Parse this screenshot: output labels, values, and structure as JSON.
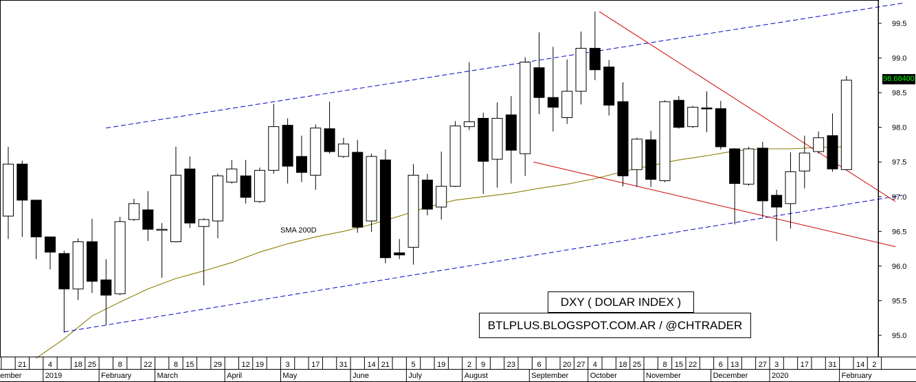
{
  "chart_data": {
    "type": "candlestick",
    "interval": "weekly",
    "ylim": [
      94.6,
      99.85
    ],
    "yticks": [
      95.0,
      95.5,
      96.0,
      96.5,
      97.0,
      97.5,
      98.0,
      98.5,
      99.0,
      99.5
    ],
    "ytick_labels": [
      "95.0",
      "95.5",
      "96.0",
      "96.5",
      "97.0",
      "97.5",
      "98.0",
      "98.5",
      "99.0",
      "99.5"
    ],
    "last_price": "98.68400",
    "title": "DXY ( DOLAR INDEX )",
    "credit": "BTLPLUS.BLOGSPOT.COM.AR / @CHTRADER",
    "sma_label": "SMA 200D",
    "x_day_labels": [
      {
        "i": 1,
        "label": "21"
      },
      {
        "i": 3,
        "label": "4"
      },
      {
        "i": 5,
        "label": "18"
      },
      {
        "i": 6,
        "label": "25"
      },
      {
        "i": 8,
        "label": "8"
      },
      {
        "i": 10,
        "label": "22"
      },
      {
        "i": 12,
        "label": "8"
      },
      {
        "i": 13,
        "label": "15"
      },
      {
        "i": 15,
        "label": "29"
      },
      {
        "i": 17,
        "label": "12"
      },
      {
        "i": 18,
        "label": "19"
      },
      {
        "i": 20,
        "label": "3"
      },
      {
        "i": 22,
        "label": "17"
      },
      {
        "i": 24,
        "label": "31"
      },
      {
        "i": 26,
        "label": "14"
      },
      {
        "i": 27,
        "label": "21"
      },
      {
        "i": 29,
        "label": "5"
      },
      {
        "i": 31,
        "label": "19"
      },
      {
        "i": 33,
        "label": "2"
      },
      {
        "i": 34,
        "label": "9"
      },
      {
        "i": 36,
        "label": "23"
      },
      {
        "i": 38,
        "label": "6"
      },
      {
        "i": 40,
        "label": "20"
      },
      {
        "i": 41,
        "label": "27"
      },
      {
        "i": 42,
        "label": "4"
      },
      {
        "i": 44,
        "label": "18"
      },
      {
        "i": 45,
        "label": "25"
      },
      {
        "i": 47,
        "label": "8"
      },
      {
        "i": 48,
        "label": "15"
      },
      {
        "i": 49,
        "label": "22"
      },
      {
        "i": 51,
        "label": "6"
      },
      {
        "i": 52,
        "label": "13"
      },
      {
        "i": 54,
        "label": "27"
      },
      {
        "i": 55,
        "label": "3"
      },
      {
        "i": 57,
        "label": "17"
      },
      {
        "i": 59,
        "label": "31"
      },
      {
        "i": 61,
        "label": "14"
      },
      {
        "i": 62,
        "label": "2"
      }
    ],
    "x_month_labels": [
      {
        "i": -0.8,
        "label": "ecember"
      },
      {
        "i": 3,
        "label": "2019"
      },
      {
        "i": 7,
        "label": "February"
      },
      {
        "i": 11,
        "label": "March"
      },
      {
        "i": 16,
        "label": "April"
      },
      {
        "i": 20,
        "label": "May"
      },
      {
        "i": 25,
        "label": "June"
      },
      {
        "i": 29,
        "label": "July"
      },
      {
        "i": 33,
        "label": "August"
      },
      {
        "i": 37.8,
        "label": "September"
      },
      {
        "i": 42,
        "label": "October"
      },
      {
        "i": 46,
        "label": "November"
      },
      {
        "i": 50.8,
        "label": "December"
      },
      {
        "i": 55,
        "label": "2020"
      },
      {
        "i": 60,
        "label": "February"
      }
    ],
    "candles": [
      {
        "o": 96.72,
        "h": 97.72,
        "l": 96.39,
        "c": 97.47
      },
      {
        "o": 97.47,
        "h": 97.52,
        "l": 96.42,
        "c": 96.95
      },
      {
        "o": 96.95,
        "h": 96.95,
        "l": 96.1,
        "c": 96.42
      },
      {
        "o": 96.42,
        "h": 96.42,
        "l": 95.95,
        "c": 96.2
      },
      {
        "o": 96.18,
        "h": 96.22,
        "l": 95.04,
        "c": 95.67
      },
      {
        "o": 95.67,
        "h": 96.4,
        "l": 95.51,
        "c": 96.35
      },
      {
        "o": 96.35,
        "h": 96.68,
        "l": 95.61,
        "c": 95.78
      },
      {
        "o": 95.8,
        "h": 96.1,
        "l": 95.15,
        "c": 95.58
      },
      {
        "o": 95.6,
        "h": 96.71,
        "l": 95.58,
        "c": 96.64
      },
      {
        "o": 96.67,
        "h": 96.97,
        "l": 96.65,
        "c": 96.9
      },
      {
        "o": 96.81,
        "h": 97.08,
        "l": 96.36,
        "c": 96.53
      },
      {
        "o": 96.53,
        "h": 96.62,
        "l": 95.83,
        "c": 96.53
      },
      {
        "o": 96.35,
        "h": 97.72,
        "l": 96.34,
        "c": 97.31
      },
      {
        "o": 97.4,
        "h": 97.58,
        "l": 96.55,
        "c": 96.62
      },
      {
        "o": 96.57,
        "h": 96.69,
        "l": 95.72,
        "c": 96.67
      },
      {
        "o": 96.65,
        "h": 97.33,
        "l": 96.4,
        "c": 97.3
      },
      {
        "o": 97.21,
        "h": 97.53,
        "l": 97.19,
        "c": 97.4
      },
      {
        "o": 97.3,
        "h": 97.53,
        "l": 96.9,
        "c": 96.99
      },
      {
        "o": 96.93,
        "h": 97.42,
        "l": 96.91,
        "c": 97.38
      },
      {
        "o": 97.38,
        "h": 98.34,
        "l": 97.33,
        "c": 98.01
      },
      {
        "o": 98.03,
        "h": 98.13,
        "l": 97.19,
        "c": 97.44
      },
      {
        "o": 97.58,
        "h": 97.88,
        "l": 97.21,
        "c": 97.35
      },
      {
        "o": 97.31,
        "h": 98.04,
        "l": 97.1,
        "c": 97.99
      },
      {
        "o": 97.98,
        "h": 98.37,
        "l": 97.62,
        "c": 97.65
      },
      {
        "o": 97.58,
        "h": 97.85,
        "l": 97.56,
        "c": 97.76
      },
      {
        "o": 97.64,
        "h": 97.82,
        "l": 96.48,
        "c": 96.56
      },
      {
        "o": 96.65,
        "h": 97.62,
        "l": 96.49,
        "c": 97.58
      },
      {
        "o": 97.53,
        "h": 97.68,
        "l": 96.04,
        "c": 96.12
      },
      {
        "o": 96.19,
        "h": 96.39,
        "l": 96.1,
        "c": 96.16
      },
      {
        "o": 96.27,
        "h": 97.47,
        "l": 96.02,
        "c": 97.31
      },
      {
        "o": 97.24,
        "h": 97.33,
        "l": 96.73,
        "c": 96.82
      },
      {
        "o": 96.85,
        "h": 97.65,
        "l": 96.67,
        "c": 97.15
      },
      {
        "o": 97.15,
        "h": 98.09,
        "l": 97.14,
        "c": 98.02
      },
      {
        "o": 98.01,
        "h": 98.94,
        "l": 97.96,
        "c": 98.08
      },
      {
        "o": 98.13,
        "h": 98.21,
        "l": 97.04,
        "c": 97.51
      },
      {
        "o": 97.54,
        "h": 98.36,
        "l": 97.13,
        "c": 98.13
      },
      {
        "o": 98.18,
        "h": 98.45,
        "l": 97.19,
        "c": 97.67
      },
      {
        "o": 97.62,
        "h": 99.01,
        "l": 97.3,
        "c": 98.94
      },
      {
        "o": 98.86,
        "h": 99.37,
        "l": 98.19,
        "c": 98.43
      },
      {
        "o": 98.43,
        "h": 99.16,
        "l": 97.94,
        "c": 98.29
      },
      {
        "o": 98.14,
        "h": 98.98,
        "l": 98.05,
        "c": 98.52
      },
      {
        "o": 98.52,
        "h": 99.38,
        "l": 98.33,
        "c": 99.14
      },
      {
        "o": 99.14,
        "h": 99.67,
        "l": 98.68,
        "c": 98.83
      },
      {
        "o": 98.87,
        "h": 98.97,
        "l": 98.17,
        "c": 98.32
      },
      {
        "o": 98.37,
        "h": 98.65,
        "l": 97.15,
        "c": 97.3
      },
      {
        "o": 97.39,
        "h": 97.85,
        "l": 97.14,
        "c": 97.83
      },
      {
        "o": 97.82,
        "h": 97.95,
        "l": 97.14,
        "c": 97.25
      },
      {
        "o": 97.23,
        "h": 98.39,
        "l": 97.21,
        "c": 98.37
      },
      {
        "o": 98.39,
        "h": 98.45,
        "l": 97.98,
        "c": 98.0
      },
      {
        "o": 98.01,
        "h": 98.31,
        "l": 97.99,
        "c": 98.29
      },
      {
        "o": 98.28,
        "h": 98.52,
        "l": 97.93,
        "c": 98.27
      },
      {
        "o": 98.27,
        "h": 98.38,
        "l": 97.68,
        "c": 97.72
      },
      {
        "o": 97.69,
        "h": 97.7,
        "l": 96.6,
        "c": 97.19
      },
      {
        "o": 97.18,
        "h": 97.72,
        "l": 97.16,
        "c": 97.69
      },
      {
        "o": 97.7,
        "h": 97.79,
        "l": 96.7,
        "c": 96.94
      },
      {
        "o": 97.02,
        "h": 97.1,
        "l": 96.36,
        "c": 96.85
      },
      {
        "o": 96.9,
        "h": 97.64,
        "l": 96.54,
        "c": 97.36
      },
      {
        "o": 97.37,
        "h": 97.88,
        "l": 97.12,
        "c": 97.63
      },
      {
        "o": 97.65,
        "h": 97.94,
        "l": 97.62,
        "c": 97.85
      },
      {
        "o": 97.88,
        "h": 98.2,
        "l": 97.36,
        "c": 97.4
      },
      {
        "o": 97.39,
        "h": 98.74,
        "l": 97.38,
        "c": 98.68
      }
    ],
    "sma_200d": [
      {
        "i": 2,
        "v": 94.67
      },
      {
        "i": 4,
        "v": 94.95
      },
      {
        "i": 6,
        "v": 95.28
      },
      {
        "i": 8,
        "v": 95.48
      },
      {
        "i": 10,
        "v": 95.67
      },
      {
        "i": 12,
        "v": 95.82
      },
      {
        "i": 14,
        "v": 95.93
      },
      {
        "i": 16,
        "v": 96.05
      },
      {
        "i": 18,
        "v": 96.2
      },
      {
        "i": 20,
        "v": 96.32
      },
      {
        "i": 22,
        "v": 96.42
      },
      {
        "i": 24,
        "v": 96.5
      },
      {
        "i": 26,
        "v": 96.6
      },
      {
        "i": 28,
        "v": 96.72
      },
      {
        "i": 30,
        "v": 96.85
      },
      {
        "i": 32,
        "v": 96.95
      },
      {
        "i": 34,
        "v": 97.0
      },
      {
        "i": 36,
        "v": 97.05
      },
      {
        "i": 38,
        "v": 97.12
      },
      {
        "i": 40,
        "v": 97.18
      },
      {
        "i": 42,
        "v": 97.26
      },
      {
        "i": 44,
        "v": 97.36
      },
      {
        "i": 46,
        "v": 97.45
      },
      {
        "i": 48,
        "v": 97.53
      },
      {
        "i": 50,
        "v": 97.59
      },
      {
        "i": 52,
        "v": 97.66
      },
      {
        "i": 54,
        "v": 97.69
      },
      {
        "i": 56,
        "v": 97.69
      },
      {
        "i": 58,
        "v": 97.71
      },
      {
        "i": 60,
        "v": 97.72
      }
    ],
    "trendlines": [
      {
        "color": "#0000cc",
        "dash": true,
        "from": {
          "i": 7,
          "v": 97.99
        },
        "to": {
          "i": 64,
          "v": 99.79
        }
      },
      {
        "color": "#0000cc",
        "dash": true,
        "from": {
          "i": 4,
          "v": 95.05
        },
        "to": {
          "i": 64,
          "v": 97.02
        }
      },
      {
        "color": "#cc0000",
        "dash": false,
        "from": {
          "i": 42.3,
          "v": 99.67
        },
        "to": {
          "i": 63.5,
          "v": 96.93
        }
      },
      {
        "color": "#cc0000",
        "dash": false,
        "from": {
          "i": 37.6,
          "v": 97.5
        },
        "to": {
          "i": 63.5,
          "v": 96.28
        }
      }
    ]
  }
}
